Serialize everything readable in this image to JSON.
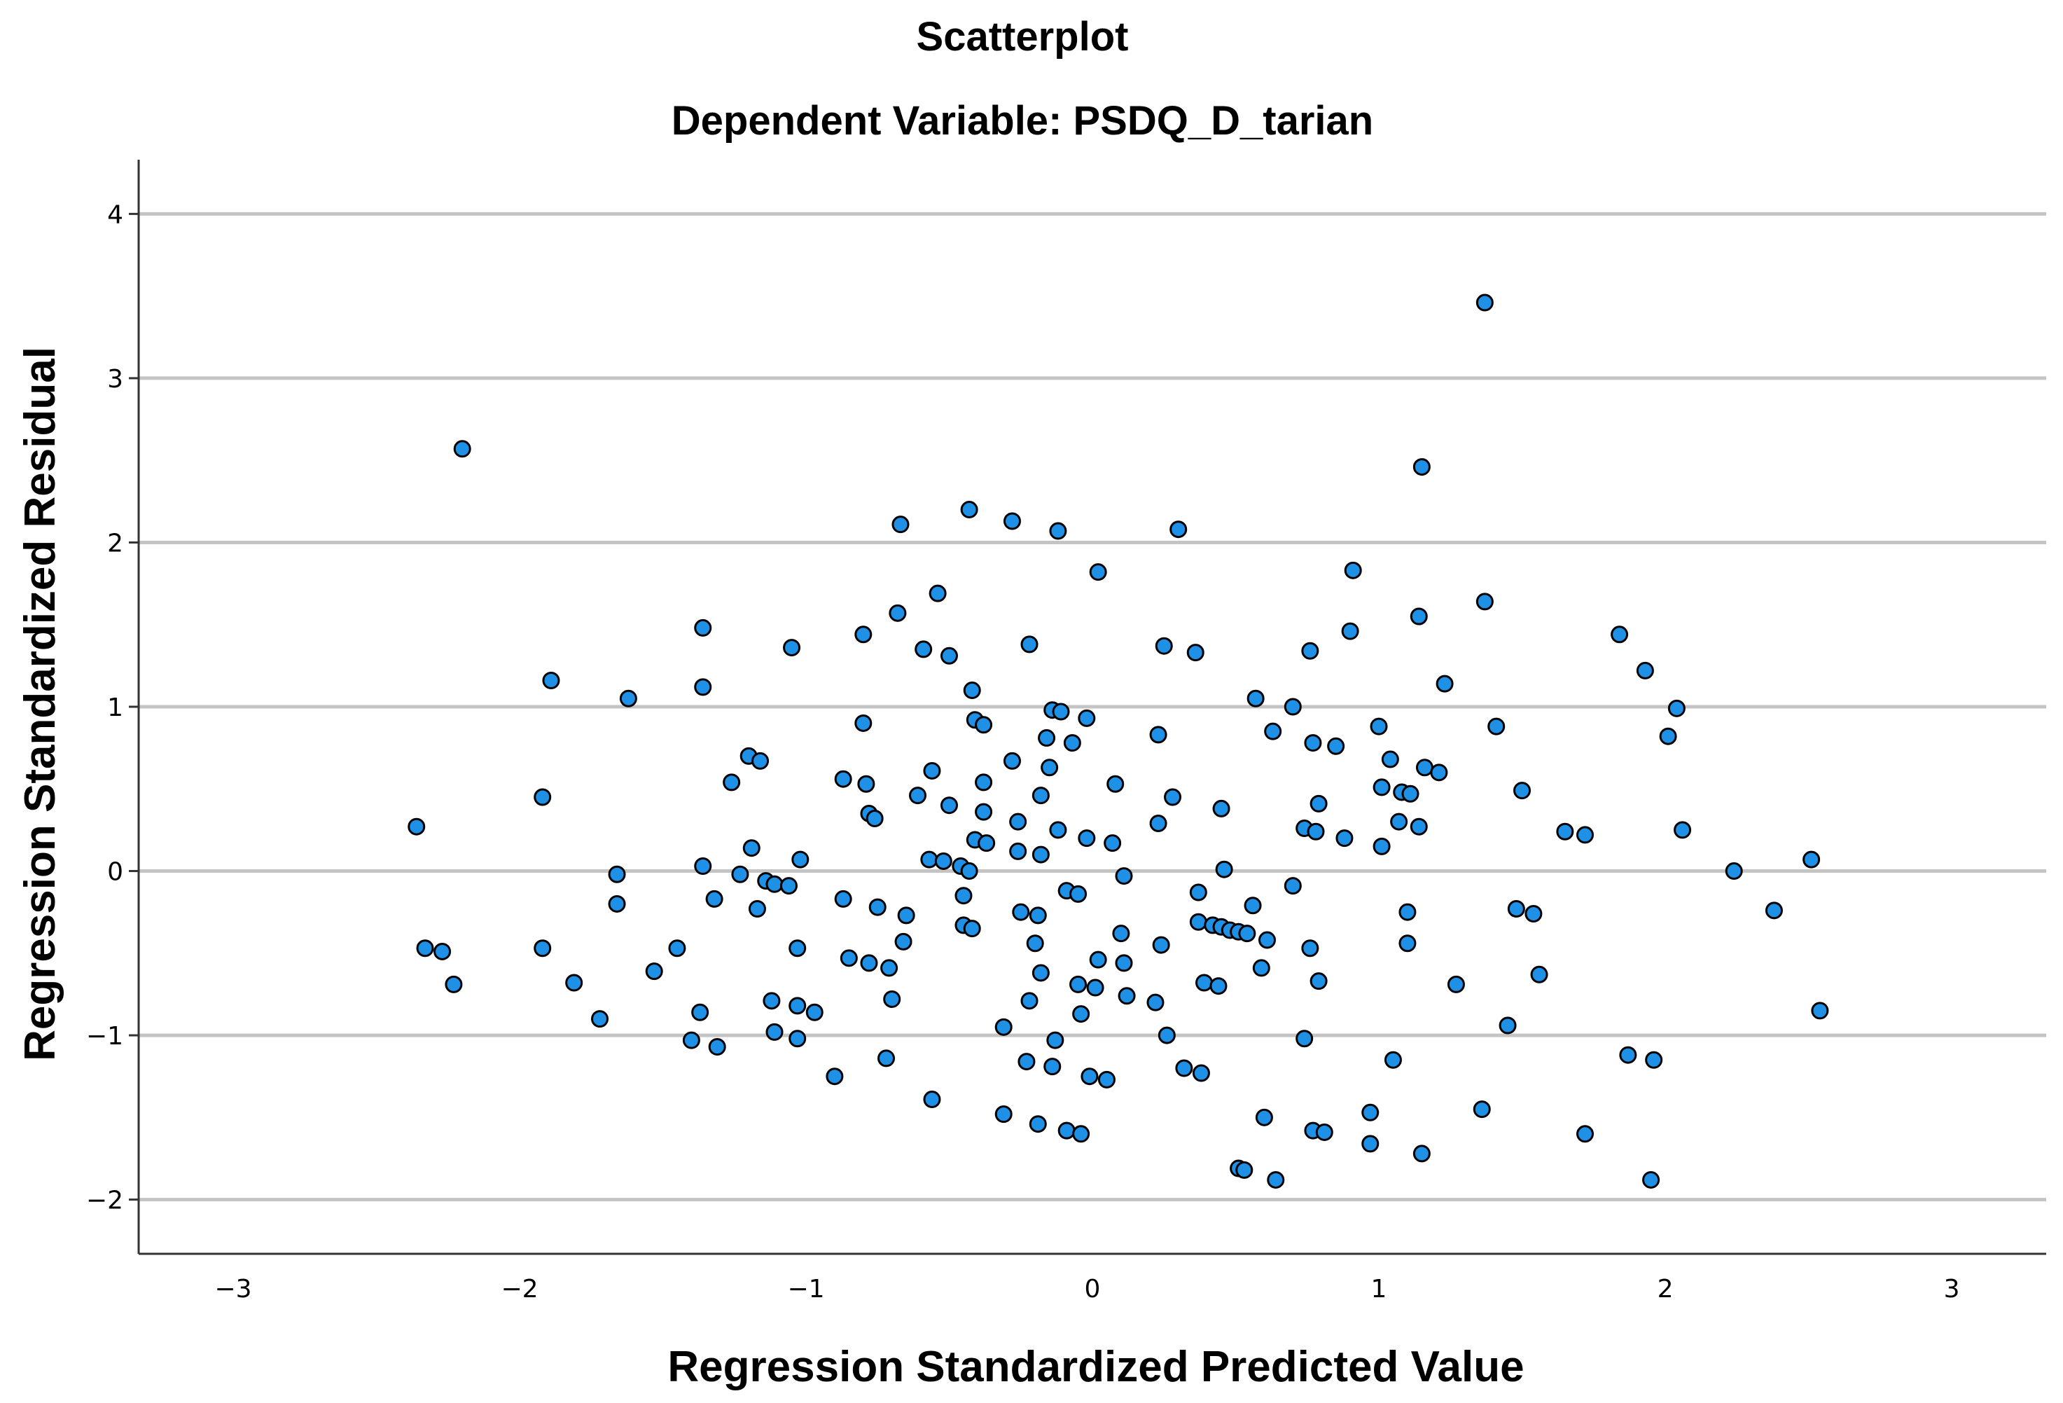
{
  "colors": {
    "point_fill": "#1e90e6",
    "point_stroke": "#000000",
    "grid": "#c4c4c4",
    "axis": "#333333",
    "background": "#ffffff"
  },
  "chart_data": {
    "type": "scatter",
    "title": "Scatterplot",
    "subtitle": "Dependent Variable: PSDQ_D_tarian",
    "xlabel": "Regression Standardized Predicted Value",
    "ylabel": "Regression Standardized Residual",
    "xlim": [
      -3.33,
      3.33
    ],
    "ylim": [
      -2.33,
      4.33
    ],
    "x_ticks": [
      -3,
      -2,
      -1,
      0,
      1,
      2,
      3
    ],
    "x_tick_labels": [
      "−3",
      "−2",
      "−1",
      "0",
      "1",
      "2",
      "3"
    ],
    "y_ticks": [
      -2,
      -1,
      0,
      1,
      2,
      3,
      4
    ],
    "y_tick_labels": [
      "−2",
      "−1",
      "0",
      "1",
      "2",
      "3",
      "4"
    ],
    "grid": "horizontal",
    "points": [
      [
        -2.2,
        2.57
      ],
      [
        -1.89,
        1.16
      ],
      [
        -1.92,
        0.45
      ],
      [
        -2.36,
        0.27
      ],
      [
        -1.92,
        -0.47
      ],
      [
        -2.33,
        -0.47
      ],
      [
        -2.27,
        -0.49
      ],
      [
        -2.23,
        -0.69
      ],
      [
        -1.81,
        -0.68
      ],
      [
        -1.72,
        -0.9
      ],
      [
        -1.62,
        1.05
      ],
      [
        -1.66,
        -0.02
      ],
      [
        -1.66,
        -0.2
      ],
      [
        -1.45,
        -0.47
      ],
      [
        -1.53,
        -0.61
      ],
      [
        -1.36,
        1.48
      ],
      [
        -1.36,
        1.12
      ],
      [
        -1.32,
        -0.17
      ],
      [
        -1.36,
        0.03
      ],
      [
        -1.37,
        -0.86
      ],
      [
        -1.4,
        -1.03
      ],
      [
        -1.31,
        -1.07
      ],
      [
        -1.26,
        0.54
      ],
      [
        -1.2,
        0.7
      ],
      [
        -1.23,
        -0.02
      ],
      [
        -1.19,
        0.14
      ],
      [
        -1.16,
        0.67
      ],
      [
        -1.17,
        -0.23
      ],
      [
        -1.14,
        -0.06
      ],
      [
        -1.11,
        -0.08
      ],
      [
        -1.12,
        -0.79
      ],
      [
        -1.11,
        -0.98
      ],
      [
        -1.05,
        1.36
      ],
      [
        -1.06,
        -0.09
      ],
      [
        -1.03,
        -0.47
      ],
      [
        -1.02,
        0.07
      ],
      [
        -1.03,
        -0.82
      ],
      [
        -1.03,
        -1.02
      ],
      [
        -0.97,
        -0.86
      ],
      [
        -0.9,
        -1.25
      ],
      [
        -0.87,
        0.56
      ],
      [
        -0.87,
        -0.17
      ],
      [
        -0.85,
        -0.53
      ],
      [
        -0.8,
        1.44
      ],
      [
        -0.8,
        0.9
      ],
      [
        -0.79,
        0.53
      ],
      [
        -0.78,
        0.35
      ],
      [
        -0.76,
        0.32
      ],
      [
        -0.78,
        -0.56
      ],
      [
        -0.75,
        -0.22
      ],
      [
        -0.71,
        -0.59
      ],
      [
        -0.7,
        -0.78
      ],
      [
        -0.72,
        -1.14
      ],
      [
        -0.68,
        1.57
      ],
      [
        -0.67,
        2.11
      ],
      [
        -0.65,
        -0.27
      ],
      [
        -0.61,
        0.46
      ],
      [
        -0.66,
        -0.43
      ],
      [
        -0.59,
        1.35
      ],
      [
        -0.56,
        0.61
      ],
      [
        -0.57,
        0.07
      ],
      [
        -0.56,
        -1.39
      ],
      [
        -0.54,
        1.69
      ],
      [
        -0.52,
        0.06
      ],
      [
        -0.5,
        1.31
      ],
      [
        -0.5,
        0.4
      ],
      [
        -0.46,
        0.03
      ],
      [
        -0.45,
        -0.15
      ],
      [
        -0.45,
        -0.33
      ],
      [
        -0.43,
        2.2
      ],
      [
        -0.42,
        1.1
      ],
      [
        -0.41,
        0.92
      ],
      [
        -0.41,
        0.19
      ],
      [
        -0.43,
        0.0
      ],
      [
        -0.42,
        -0.35
      ],
      [
        -0.38,
        0.89
      ],
      [
        -0.38,
        0.54
      ],
      [
        -0.38,
        0.36
      ],
      [
        -0.37,
        0.17
      ],
      [
        -0.31,
        -0.95
      ],
      [
        -0.31,
        -1.48
      ],
      [
        -0.28,
        2.13
      ],
      [
        -0.28,
        0.67
      ],
      [
        -0.26,
        0.3
      ],
      [
        -0.26,
        0.12
      ],
      [
        -0.25,
        -0.25
      ],
      [
        -0.23,
        -1.16
      ],
      [
        -0.22,
        -0.79
      ],
      [
        -0.22,
        1.38
      ],
      [
        -0.2,
        -0.44
      ],
      [
        -0.18,
        0.46
      ],
      [
        -0.18,
        0.1
      ],
      [
        -0.19,
        -0.27
      ],
      [
        -0.18,
        -0.62
      ],
      [
        -0.19,
        -1.54
      ],
      [
        -0.16,
        0.81
      ],
      [
        -0.15,
        0.63
      ],
      [
        -0.14,
        0.98
      ],
      [
        -0.14,
        -1.19
      ],
      [
        -0.12,
        2.07
      ],
      [
        -0.11,
        0.97
      ],
      [
        -0.12,
        0.25
      ],
      [
        -0.13,
        -1.03
      ],
      [
        -0.09,
        -0.12
      ],
      [
        -0.09,
        -1.58
      ],
      [
        -0.07,
        0.78
      ],
      [
        -0.05,
        -0.14
      ],
      [
        -0.05,
        -0.69
      ],
      [
        -0.04,
        -0.87
      ],
      [
        -0.04,
        -1.6
      ],
      [
        -0.02,
        0.93
      ],
      [
        -0.02,
        0.2
      ],
      [
        -0.01,
        -1.25
      ],
      [
        0.02,
        1.82
      ],
      [
        0.02,
        -0.54
      ],
      [
        0.01,
        -0.71
      ],
      [
        0.05,
        -1.27
      ],
      [
        0.07,
        0.17
      ],
      [
        0.08,
        0.53
      ],
      [
        0.1,
        -0.38
      ],
      [
        0.11,
        -0.56
      ],
      [
        0.11,
        -0.03
      ],
      [
        0.12,
        -0.76
      ],
      [
        0.22,
        -0.8
      ],
      [
        0.23,
        0.83
      ],
      [
        0.23,
        0.29
      ],
      [
        0.24,
        -0.45
      ],
      [
        0.25,
        1.37
      ],
      [
        0.26,
        -1.0
      ],
      [
        0.28,
        0.45
      ],
      [
        0.3,
        2.08
      ],
      [
        0.32,
        -1.2
      ],
      [
        0.36,
        1.33
      ],
      [
        0.37,
        -0.13
      ],
      [
        0.37,
        -0.31
      ],
      [
        0.38,
        -1.23
      ],
      [
        0.39,
        -0.68
      ],
      [
        0.42,
        -0.33
      ],
      [
        0.44,
        -0.7
      ],
      [
        0.45,
        -0.34
      ],
      [
        0.45,
        0.38
      ],
      [
        0.46,
        0.01
      ],
      [
        0.48,
        -0.36
      ],
      [
        0.51,
        -0.37
      ],
      [
        0.51,
        -1.81
      ],
      [
        0.53,
        -1.82
      ],
      [
        0.54,
        -0.38
      ],
      [
        0.56,
        -0.21
      ],
      [
        0.57,
        1.05
      ],
      [
        0.59,
        -0.59
      ],
      [
        0.6,
        -1.5
      ],
      [
        0.61,
        -0.42
      ],
      [
        0.63,
        0.85
      ],
      [
        0.64,
        -1.88
      ],
      [
        0.7,
        1.0
      ],
      [
        0.7,
        -0.09
      ],
      [
        0.74,
        0.26
      ],
      [
        0.74,
        -1.02
      ],
      [
        0.76,
        1.34
      ],
      [
        0.76,
        -0.47
      ],
      [
        0.77,
        0.78
      ],
      [
        0.77,
        -1.58
      ],
      [
        0.78,
        0.24
      ],
      [
        0.79,
        -0.67
      ],
      [
        0.79,
        0.41
      ],
      [
        0.81,
        -1.59
      ],
      [
        0.85,
        0.76
      ],
      [
        0.88,
        0.2
      ],
      [
        0.9,
        1.46
      ],
      [
        0.91,
        1.83
      ],
      [
        0.97,
        -1.47
      ],
      [
        0.97,
        -1.66
      ],
      [
        1.0,
        0.88
      ],
      [
        1.01,
        0.51
      ],
      [
        1.01,
        0.15
      ],
      [
        1.04,
        0.68
      ],
      [
        1.05,
        -1.15
      ],
      [
        1.07,
        0.3
      ],
      [
        1.08,
        0.48
      ],
      [
        1.1,
        -0.25
      ],
      [
        1.1,
        -0.44
      ],
      [
        1.11,
        0.47
      ],
      [
        1.14,
        0.27
      ],
      [
        1.14,
        1.55
      ],
      [
        1.15,
        2.46
      ],
      [
        1.15,
        -1.72
      ],
      [
        1.16,
        0.63
      ],
      [
        1.21,
        0.6
      ],
      [
        1.23,
        1.14
      ],
      [
        1.27,
        -0.69
      ],
      [
        1.36,
        -1.45
      ],
      [
        1.37,
        3.46
      ],
      [
        1.37,
        1.64
      ],
      [
        1.41,
        0.88
      ],
      [
        1.45,
        -0.94
      ],
      [
        1.48,
        -0.23
      ],
      [
        1.5,
        0.49
      ],
      [
        1.54,
        -0.26
      ],
      [
        1.56,
        -0.63
      ],
      [
        1.65,
        0.24
      ],
      [
        1.72,
        0.22
      ],
      [
        1.72,
        -1.6
      ],
      [
        1.84,
        1.44
      ],
      [
        1.87,
        -1.12
      ],
      [
        1.93,
        1.22
      ],
      [
        1.96,
        -1.15
      ],
      [
        1.95,
        -1.88
      ],
      [
        2.01,
        0.82
      ],
      [
        2.04,
        0.99
      ],
      [
        2.06,
        0.25
      ],
      [
        2.24,
        0.0
      ],
      [
        2.38,
        -0.24
      ],
      [
        2.51,
        0.07
      ],
      [
        2.54,
        -0.85
      ]
    ]
  }
}
